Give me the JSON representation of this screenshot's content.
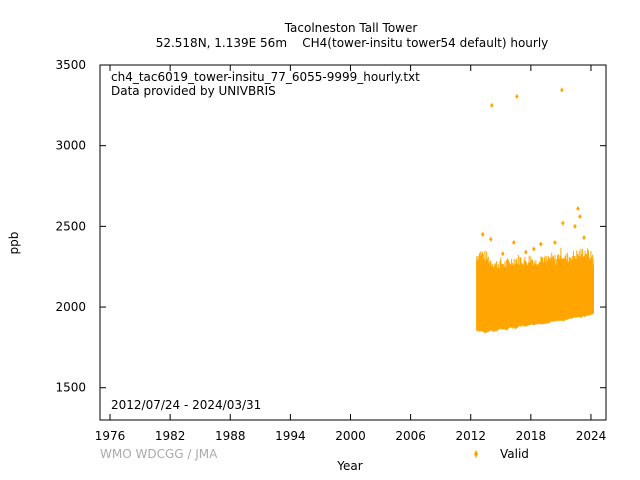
{
  "chart_data": {
    "type": "scatter",
    "title": "Tacolneston Tall Tower",
    "subtitle": "52.518N, 1.139E 56m    CH4(tower-insitu tower54 default) hourly",
    "file_label": "ch4_tac6019_tower-insitu_77_6055-9999_hourly.txt",
    "provider_label": "Data provided by UNIVBRIS",
    "date_range_label": "2012/07/24 - 2024/03/31",
    "xlabel": "Year",
    "ylabel": "ppb",
    "xlim": [
      1975,
      2025.5
    ],
    "ylim": [
      1300,
      3500
    ],
    "x_ticks": [
      1976,
      1982,
      1988,
      1994,
      2000,
      2006,
      2012,
      2018,
      2024
    ],
    "y_ticks": [
      1500,
      2000,
      2500,
      3000,
      3500
    ],
    "grid": false,
    "legend_position": "bottom-right",
    "series": [
      {
        "name": "Valid",
        "color": "#FFA500",
        "marker": "diamond",
        "band": {
          "x": [
            2012.6,
            2013.0,
            2013.5,
            2014.0,
            2014.5,
            2015.0,
            2015.5,
            2016.0,
            2016.5,
            2017.0,
            2017.5,
            2018.0,
            2018.5,
            2019.0,
            2019.5,
            2020.0,
            2020.5,
            2021.0,
            2021.5,
            2022.0,
            2022.5,
            2023.0,
            2023.5,
            2024.0,
            2024.25
          ],
          "low": [
            1860,
            1855,
            1845,
            1860,
            1855,
            1870,
            1865,
            1880,
            1875,
            1890,
            1885,
            1895,
            1900,
            1900,
            1905,
            1915,
            1920,
            1920,
            1925,
            1935,
            1940,
            1945,
            1950,
            1960,
            1965
          ],
          "high": [
            2280,
            2300,
            2280,
            2250,
            2230,
            2240,
            2230,
            2250,
            2260,
            2260,
            2250,
            2270,
            2240,
            2280,
            2250,
            2270,
            2260,
            2300,
            2270,
            2280,
            2290,
            2300,
            2310,
            2280,
            2260
          ]
        },
        "outliers": [
          {
            "x": 2014.1,
            "y": 3250
          },
          {
            "x": 2016.6,
            "y": 3305
          },
          {
            "x": 2021.1,
            "y": 3345
          },
          {
            "x": 2013.2,
            "y": 2450
          },
          {
            "x": 2014.0,
            "y": 2420
          },
          {
            "x": 2016.3,
            "y": 2400
          },
          {
            "x": 2019.0,
            "y": 2390
          },
          {
            "x": 2020.4,
            "y": 2400
          },
          {
            "x": 2021.2,
            "y": 2520
          },
          {
            "x": 2022.4,
            "y": 2500
          },
          {
            "x": 2022.7,
            "y": 2610
          },
          {
            "x": 2022.9,
            "y": 2560
          },
          {
            "x": 2023.3,
            "y": 2430
          },
          {
            "x": 2015.2,
            "y": 2330
          },
          {
            "x": 2017.5,
            "y": 2340
          },
          {
            "x": 2018.3,
            "y": 2360
          }
        ]
      }
    ]
  },
  "footer": {
    "credit": "WMO WDCGG / JMA"
  }
}
